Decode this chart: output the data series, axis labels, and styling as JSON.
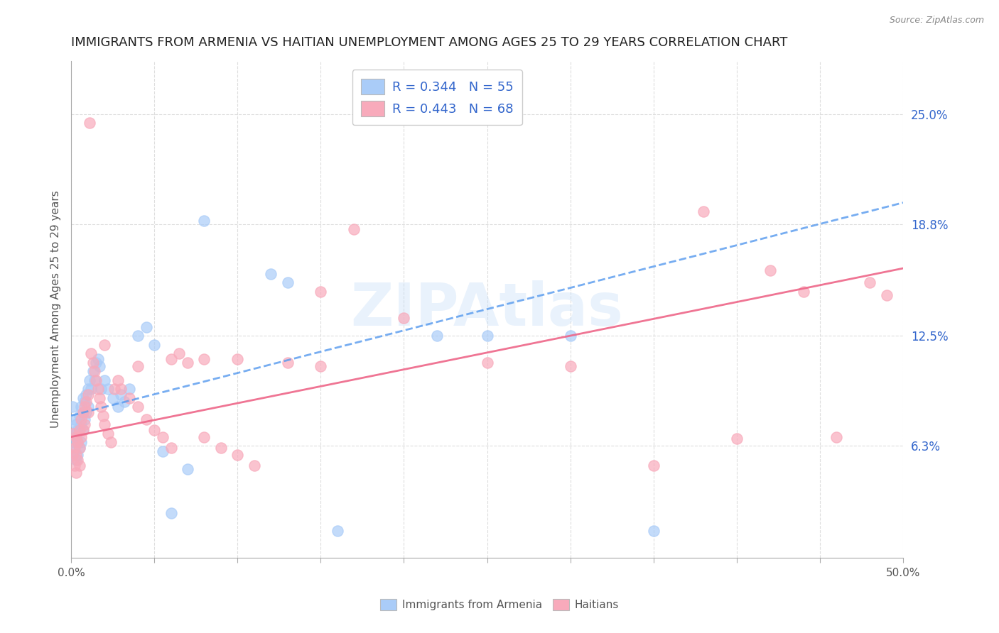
{
  "title": "IMMIGRANTS FROM ARMENIA VS HAITIAN UNEMPLOYMENT AMONG AGES 25 TO 29 YEARS CORRELATION CHART",
  "source": "Source: ZipAtlas.com",
  "ylabel": "Unemployment Among Ages 25 to 29 years",
  "xlim": [
    0.0,
    0.5
  ],
  "ylim": [
    0.0,
    0.28
  ],
  "ytick_right_labels": [
    "6.3%",
    "12.5%",
    "18.8%",
    "25.0%"
  ],
  "ytick_right_vals": [
    0.063,
    0.125,
    0.188,
    0.25
  ],
  "armenia_color": "#aaccf8",
  "haiti_color": "#f8aabb",
  "armenia_line_color": "#5599ee",
  "haiti_line_color": "#ee6688",
  "armenia_R": 0.344,
  "armenia_N": 55,
  "haiti_R": 0.443,
  "haiti_N": 68,
  "legend_text_color": "#3366cc",
  "title_fontsize": 13,
  "axis_label_fontsize": 11,
  "tick_fontsize": 11,
  "watermark": "ZIPAtlas",
  "background_color": "#ffffff",
  "grid_color": "#dddddd",
  "armenia_x": [
    0.001,
    0.001,
    0.002,
    0.002,
    0.002,
    0.003,
    0.003,
    0.003,
    0.004,
    0.004,
    0.004,
    0.005,
    0.005,
    0.005,
    0.006,
    0.006,
    0.006,
    0.007,
    0.007,
    0.007,
    0.008,
    0.008,
    0.009,
    0.009,
    0.01,
    0.01,
    0.011,
    0.012,
    0.013,
    0.014,
    0.015,
    0.016,
    0.017,
    0.018,
    0.02,
    0.022,
    0.025,
    0.028,
    0.03,
    0.032,
    0.035,
    0.04,
    0.045,
    0.05,
    0.055,
    0.06,
    0.07,
    0.08,
    0.12,
    0.13,
    0.16,
    0.22,
    0.25,
    0.3,
    0.35
  ],
  "armenia_y": [
    0.085,
    0.065,
    0.078,
    0.07,
    0.06,
    0.075,
    0.068,
    0.055,
    0.072,
    0.065,
    0.058,
    0.08,
    0.072,
    0.062,
    0.085,
    0.075,
    0.065,
    0.09,
    0.082,
    0.072,
    0.088,
    0.078,
    0.092,
    0.082,
    0.095,
    0.085,
    0.1,
    0.095,
    0.105,
    0.1,
    0.11,
    0.112,
    0.108,
    0.095,
    0.1,
    0.095,
    0.09,
    0.085,
    0.092,
    0.088,
    0.095,
    0.125,
    0.13,
    0.12,
    0.06,
    0.025,
    0.05,
    0.19,
    0.16,
    0.155,
    0.015,
    0.125,
    0.125,
    0.125,
    0.015
  ],
  "haiti_x": [
    0.001,
    0.001,
    0.002,
    0.002,
    0.003,
    0.003,
    0.003,
    0.004,
    0.004,
    0.005,
    0.005,
    0.005,
    0.006,
    0.006,
    0.007,
    0.007,
    0.008,
    0.008,
    0.009,
    0.01,
    0.01,
    0.011,
    0.012,
    0.013,
    0.014,
    0.015,
    0.016,
    0.017,
    0.018,
    0.019,
    0.02,
    0.022,
    0.024,
    0.026,
    0.028,
    0.03,
    0.035,
    0.04,
    0.045,
    0.05,
    0.055,
    0.06,
    0.065,
    0.07,
    0.08,
    0.09,
    0.1,
    0.11,
    0.13,
    0.15,
    0.17,
    0.2,
    0.25,
    0.3,
    0.35,
    0.38,
    0.4,
    0.42,
    0.44,
    0.46,
    0.48,
    0.49,
    0.02,
    0.04,
    0.06,
    0.08,
    0.1,
    0.15
  ],
  "haiti_y": [
    0.07,
    0.058,
    0.062,
    0.052,
    0.068,
    0.058,
    0.048,
    0.065,
    0.055,
    0.072,
    0.062,
    0.052,
    0.078,
    0.068,
    0.082,
    0.072,
    0.085,
    0.075,
    0.088,
    0.092,
    0.082,
    0.245,
    0.115,
    0.11,
    0.105,
    0.1,
    0.095,
    0.09,
    0.085,
    0.08,
    0.075,
    0.07,
    0.065,
    0.095,
    0.1,
    0.095,
    0.09,
    0.085,
    0.078,
    0.072,
    0.068,
    0.062,
    0.115,
    0.11,
    0.068,
    0.062,
    0.058,
    0.052,
    0.11,
    0.15,
    0.185,
    0.135,
    0.11,
    0.108,
    0.052,
    0.195,
    0.067,
    0.162,
    0.15,
    0.068,
    0.155,
    0.148,
    0.12,
    0.108,
    0.112,
    0.112,
    0.112,
    0.108
  ]
}
